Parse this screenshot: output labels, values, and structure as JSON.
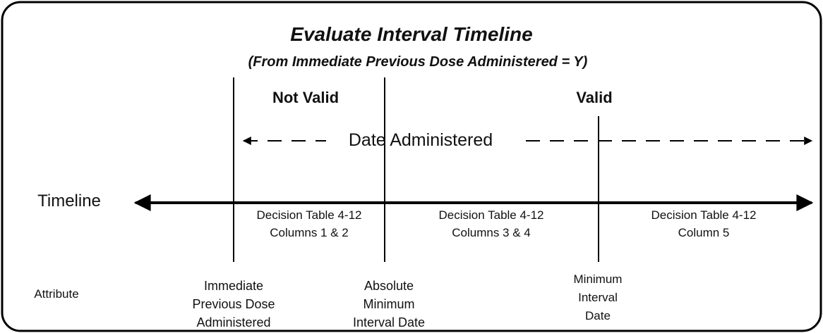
{
  "title": "Evaluate Interval Timeline",
  "subtitle": "(From Immediate Previous Dose Administered = Y)",
  "zones": {
    "not_valid": "Not Valid",
    "valid": "Valid"
  },
  "date_administered": "Date Administered",
  "timeline_label": "Timeline",
  "segments": [
    {
      "line1": "Decision Table 4-12",
      "line2": "Columns 1 & 2"
    },
    {
      "line1": "Decision Table 4-12",
      "line2": "Columns 3 & 4"
    },
    {
      "line1": "Decision Table 4-12",
      "line2": "Column 5"
    }
  ],
  "attribute_label": "Attribute",
  "attributes": [
    [
      "Immediate",
      "Previous Dose",
      "Administered"
    ],
    [
      "Absolute",
      "Minimum",
      "Interval Date"
    ],
    [
      "Minimum",
      "Interval",
      "Date"
    ]
  ]
}
